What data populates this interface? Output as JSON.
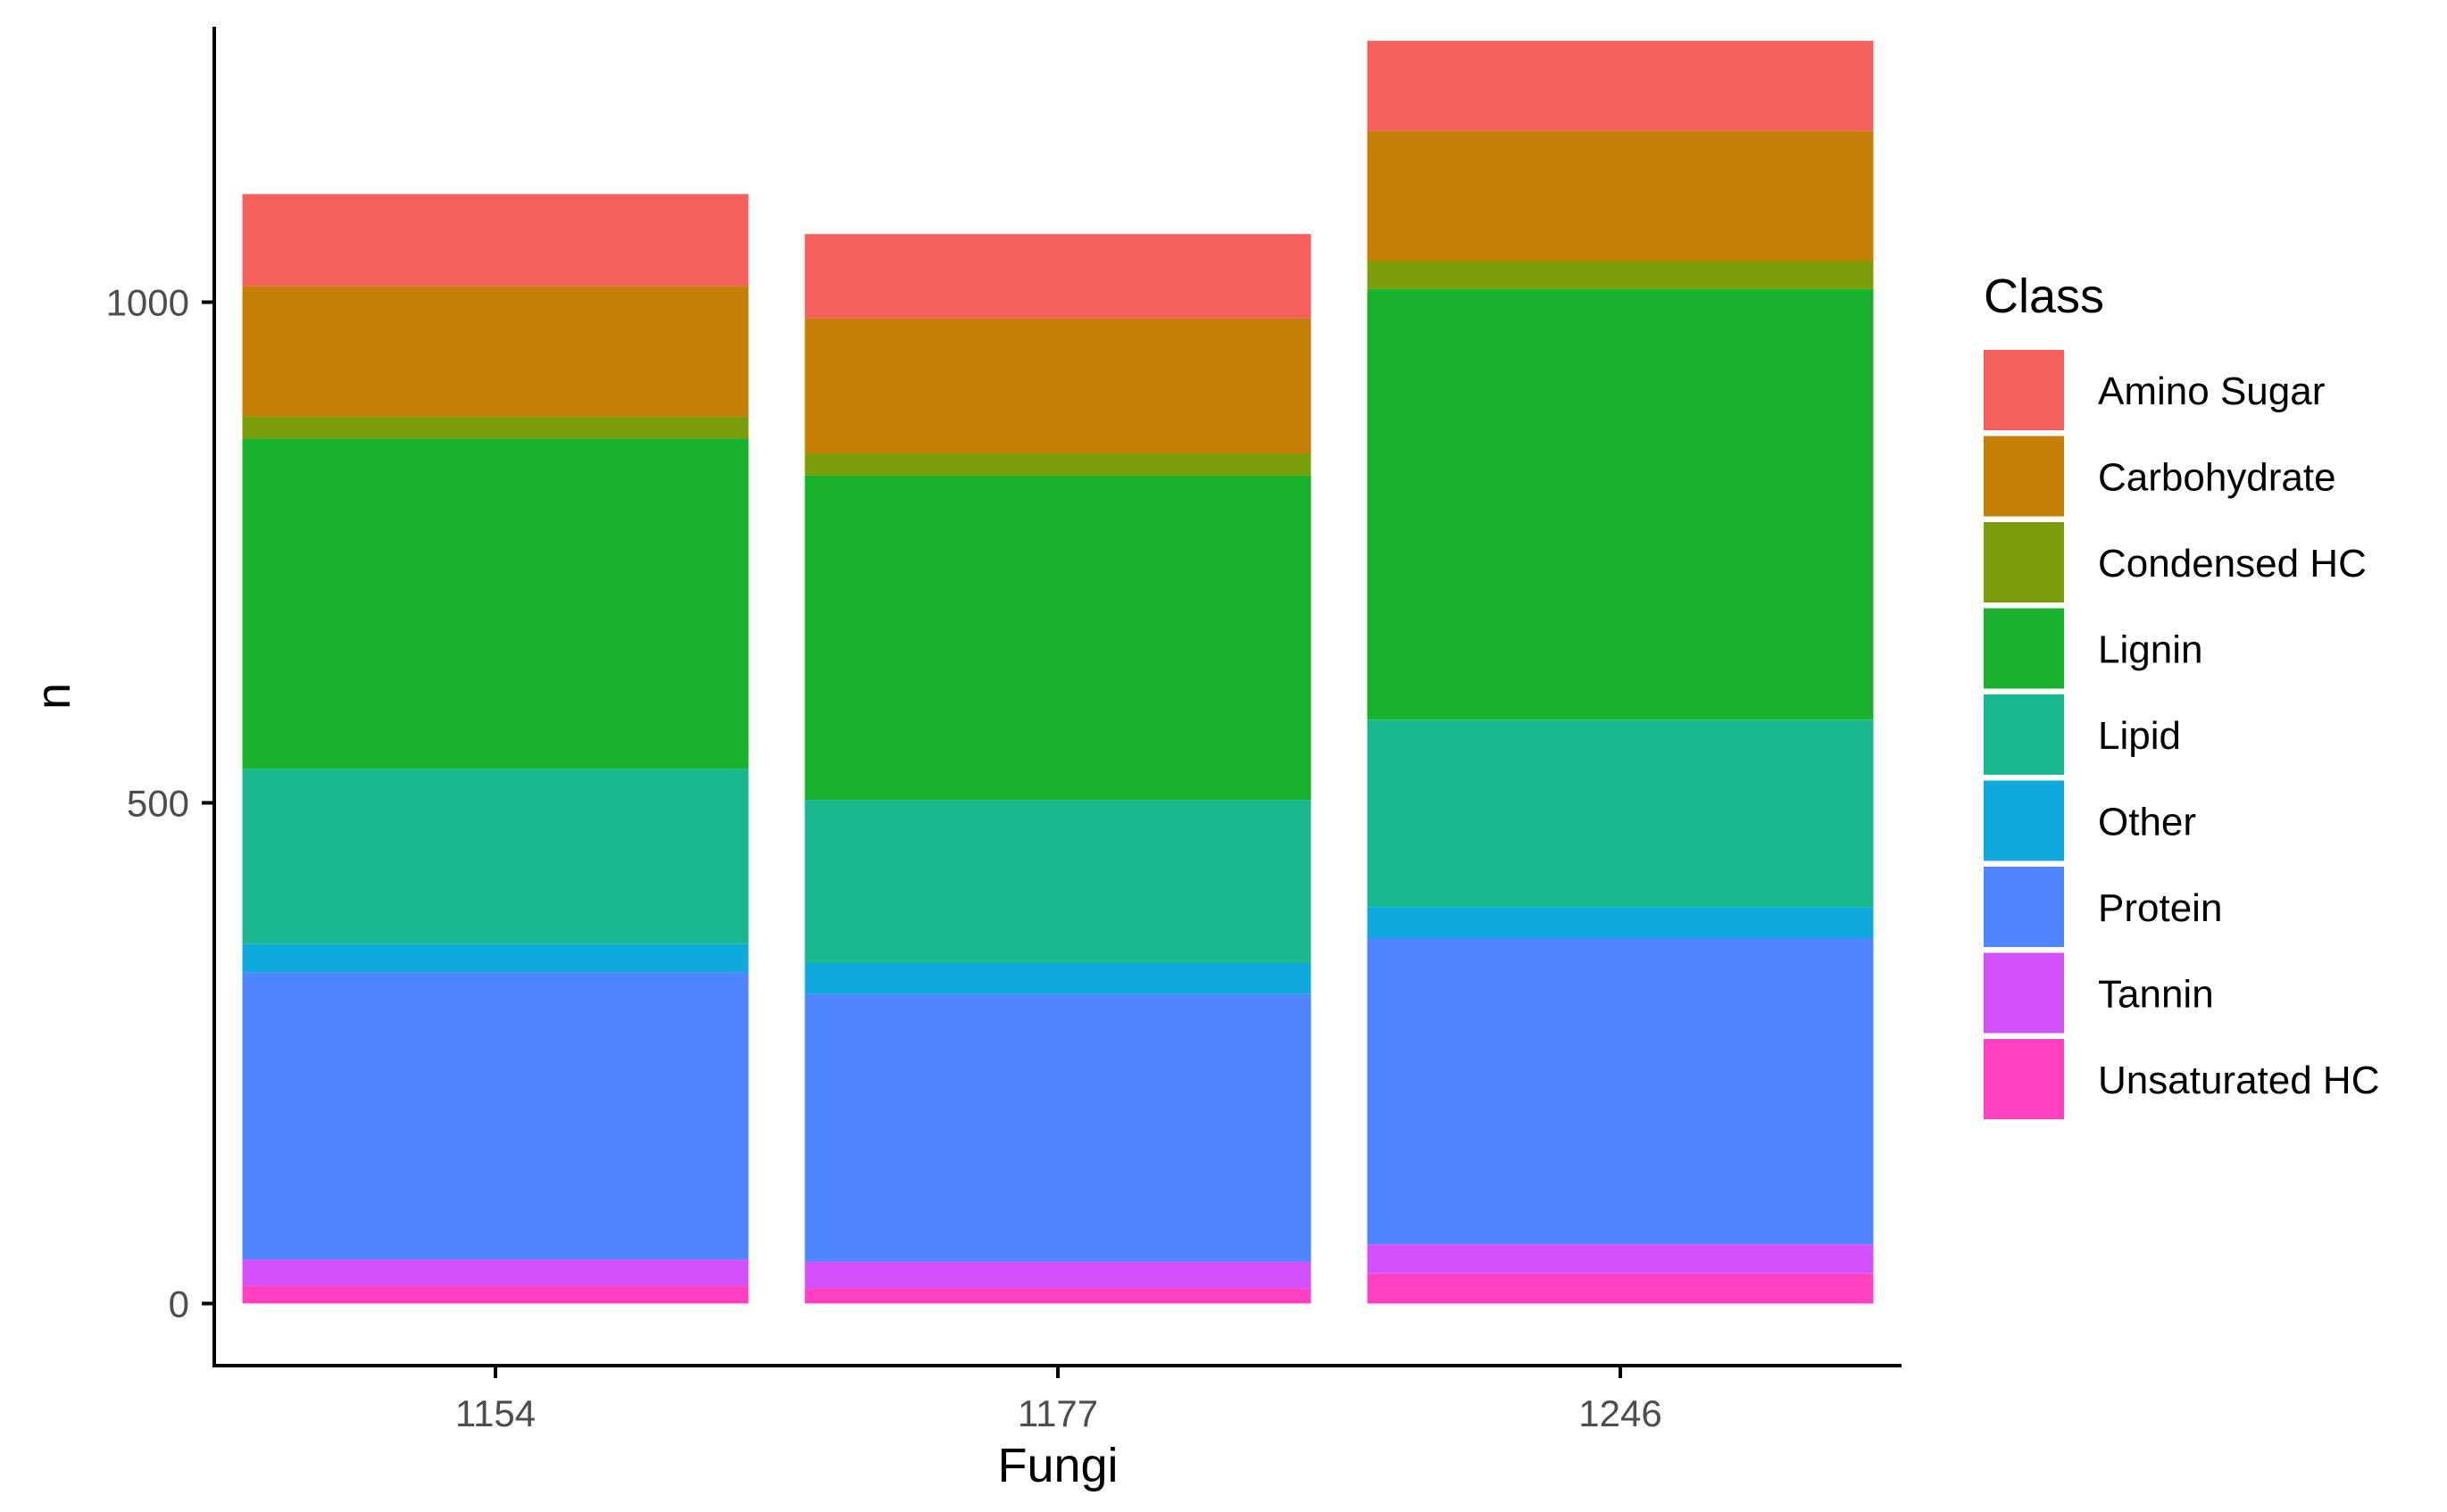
{
  "chart_data": {
    "type": "bar",
    "stacked": true,
    "categories": [
      "1154",
      "1177",
      "1246"
    ],
    "xlabel": "Fungi",
    "ylabel": "n",
    "ylim": [
      -62,
      1275
    ],
    "yticks": [
      0,
      500,
      1000
    ],
    "grid": false,
    "legend": {
      "title": "Class",
      "position": "right"
    },
    "series": [
      {
        "name": "Unsaturated HC",
        "color": "#FF40C0",
        "values": [
          18,
          15,
          30
        ]
      },
      {
        "name": "Tannin",
        "color": "#D350FA",
        "values": [
          26,
          27,
          29
        ]
      },
      {
        "name": "Protein",
        "color": "#4F86FF",
        "values": [
          287,
          267,
          306
        ]
      },
      {
        "name": "Other",
        "color": "#10A9DE",
        "values": [
          28,
          31,
          31
        ]
      },
      {
        "name": "Lipid",
        "color": "#19B88F",
        "values": [
          175,
          163,
          187
        ]
      },
      {
        "name": "Lignin",
        "color": "#19B22D",
        "values": [
          330,
          324,
          430
        ]
      },
      {
        "name": "Condensed HC",
        "color": "#7C9D0A",
        "values": [
          22,
          22,
          28
        ]
      },
      {
        "name": "Carbohydrate",
        "color": "#C57F06",
        "values": [
          130,
          135,
          130
        ]
      },
      {
        "name": "Amino Sugar",
        "color": "#F5605D",
        "values": [
          92,
          84,
          90
        ]
      }
    ]
  }
}
